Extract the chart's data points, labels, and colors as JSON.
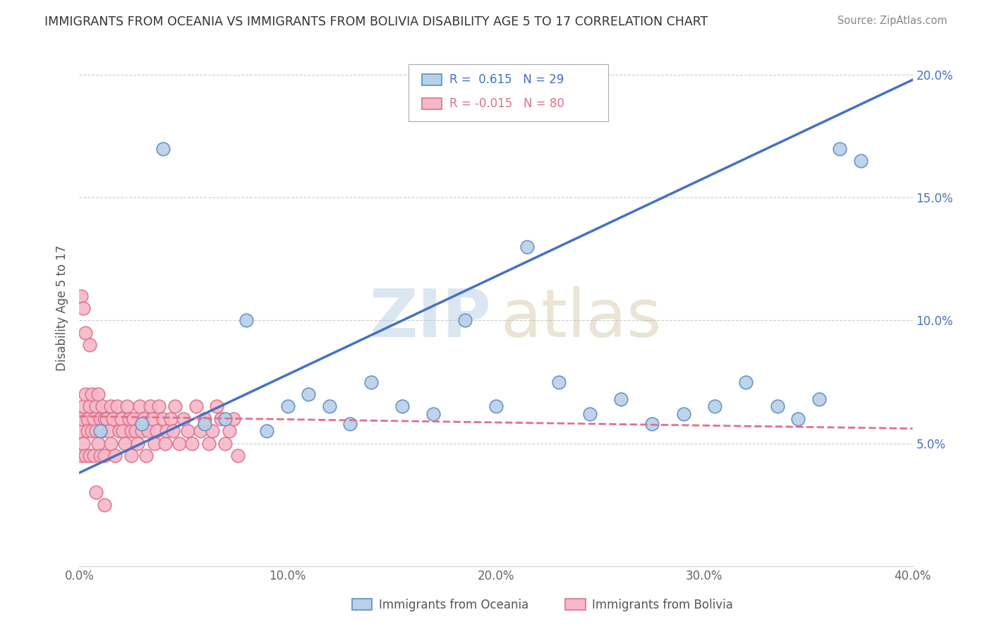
{
  "title": "IMMIGRANTS FROM OCEANIA VS IMMIGRANTS FROM BOLIVIA DISABILITY AGE 5 TO 17 CORRELATION CHART",
  "source": "Source: ZipAtlas.com",
  "ylabel": "Disability Age 5 to 17",
  "xticklabels": [
    "0.0%",
    "10.0%",
    "20.0%",
    "30.0%",
    "40.0%"
  ],
  "xticks": [
    0.0,
    0.1,
    0.2,
    0.3,
    0.4
  ],
  "yticklabels_right": [
    "5.0%",
    "10.0%",
    "15.0%",
    "20.0%"
  ],
  "yticks_right": [
    0.05,
    0.1,
    0.15,
    0.2
  ],
  "xlim": [
    0.0,
    0.4
  ],
  "ylim": [
    0.0,
    0.21
  ],
  "r_oceania": 0.615,
  "n_oceania": 29,
  "r_bolivia": -0.015,
  "n_bolivia": 80,
  "color_oceania_fill": "#b8d0e8",
  "color_oceania_edge": "#5b8ec4",
  "color_bolivia_fill": "#f5b8c8",
  "color_bolivia_edge": "#e0708a",
  "color_line_oceania": "#4472c4",
  "color_line_bolivia": "#e0708a",
  "oceania_x": [
    0.01,
    0.03,
    0.04,
    0.06,
    0.07,
    0.08,
    0.09,
    0.1,
    0.11,
    0.12,
    0.13,
    0.14,
    0.155,
    0.17,
    0.185,
    0.2,
    0.215,
    0.23,
    0.245,
    0.26,
    0.275,
    0.29,
    0.305,
    0.32,
    0.335,
    0.345,
    0.355,
    0.365,
    0.375
  ],
  "oceania_y": [
    0.055,
    0.058,
    0.17,
    0.058,
    0.06,
    0.1,
    0.055,
    0.065,
    0.07,
    0.065,
    0.058,
    0.075,
    0.065,
    0.062,
    0.1,
    0.065,
    0.13,
    0.075,
    0.062,
    0.068,
    0.058,
    0.062,
    0.065,
    0.075,
    0.065,
    0.06,
    0.068,
    0.17,
    0.165
  ],
  "bolivia_x": [
    0.0,
    0.001,
    0.001,
    0.002,
    0.002,
    0.003,
    0.003,
    0.004,
    0.004,
    0.005,
    0.005,
    0.006,
    0.006,
    0.007,
    0.007,
    0.008,
    0.008,
    0.009,
    0.009,
    0.01,
    0.01,
    0.011,
    0.011,
    0.012,
    0.012,
    0.013,
    0.014,
    0.015,
    0.015,
    0.016,
    0.017,
    0.018,
    0.019,
    0.02,
    0.021,
    0.022,
    0.023,
    0.024,
    0.025,
    0.025,
    0.026,
    0.027,
    0.028,
    0.029,
    0.03,
    0.031,
    0.032,
    0.033,
    0.034,
    0.035,
    0.036,
    0.037,
    0.038,
    0.04,
    0.041,
    0.042,
    0.044,
    0.045,
    0.046,
    0.048,
    0.05,
    0.052,
    0.054,
    0.056,
    0.058,
    0.06,
    0.062,
    0.064,
    0.066,
    0.068,
    0.07,
    0.072,
    0.074,
    0.076,
    0.001,
    0.002,
    0.003,
    0.005,
    0.008,
    0.012
  ],
  "bolivia_y": [
    0.055,
    0.06,
    0.045,
    0.065,
    0.05,
    0.07,
    0.045,
    0.06,
    0.055,
    0.065,
    0.045,
    0.07,
    0.055,
    0.06,
    0.045,
    0.065,
    0.055,
    0.07,
    0.05,
    0.06,
    0.045,
    0.065,
    0.055,
    0.06,
    0.045,
    0.06,
    0.055,
    0.065,
    0.05,
    0.06,
    0.045,
    0.065,
    0.055,
    0.06,
    0.055,
    0.05,
    0.065,
    0.06,
    0.055,
    0.045,
    0.06,
    0.055,
    0.05,
    0.065,
    0.055,
    0.06,
    0.045,
    0.055,
    0.065,
    0.06,
    0.05,
    0.055,
    0.065,
    0.06,
    0.05,
    0.055,
    0.06,
    0.055,
    0.065,
    0.05,
    0.06,
    0.055,
    0.05,
    0.065,
    0.055,
    0.06,
    0.05,
    0.055,
    0.065,
    0.06,
    0.05,
    0.055,
    0.06,
    0.045,
    0.11,
    0.105,
    0.095,
    0.09,
    0.03,
    0.025
  ],
  "line_oceania": [
    0.038,
    0.198
  ],
  "line_bolivia": [
    0.061,
    0.056
  ]
}
